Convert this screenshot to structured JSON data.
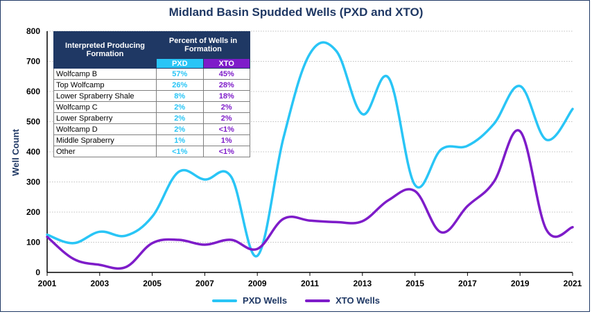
{
  "chart_data": {
    "type": "line",
    "title": "Midland Basin Spudded Wells (PXD and XTO)",
    "ylabel": "Well Count",
    "xlabel": "",
    "ylim": [
      0,
      800
    ],
    "yticks": [
      0,
      100,
      200,
      300,
      400,
      500,
      600,
      700,
      800
    ],
    "xlim": [
      2001,
      2021
    ],
    "xticks": [
      2001,
      2003,
      2005,
      2007,
      2009,
      2011,
      2013,
      2015,
      2017,
      2019,
      2021
    ],
    "grid": true,
    "legend_position": "bottom",
    "x": [
      2001,
      2002,
      2003,
      2004,
      2005,
      2006,
      2007,
      2008,
      2009,
      2010,
      2011,
      2012,
      2013,
      2014,
      2015,
      2016,
      2017,
      2018,
      2019,
      2020,
      2021
    ],
    "series": [
      {
        "name": "PXD Wells",
        "color": "#29c5f6",
        "values": [
          125,
          97,
          135,
          122,
          185,
          333,
          308,
          318,
          55,
          448,
          725,
          735,
          525,
          645,
          290,
          408,
          420,
          492,
          618,
          440,
          542
        ]
      },
      {
        "name": "XTO Wells",
        "color": "#7e1cc9",
        "values": [
          118,
          45,
          25,
          18,
          97,
          108,
          92,
          108,
          78,
          178,
          172,
          167,
          170,
          240,
          270,
          133,
          220,
          300,
          468,
          142,
          150
        ]
      }
    ]
  },
  "table": {
    "header_formation": "Interpreted Producing Formation",
    "header_percent": "Percent of Wells in Formation",
    "col_pxd": "PXD",
    "col_xto": "XTO",
    "col_pxd_color": "#29c5f6",
    "col_xto_color": "#7e1cc9",
    "rows": [
      {
        "formation": "Wolfcamp B",
        "pxd": "57%",
        "xto": "45%"
      },
      {
        "formation": "Top Wolfcamp",
        "pxd": "26%",
        "xto": "28%"
      },
      {
        "formation": "Lower Spraberry Shale",
        "pxd": "8%",
        "xto": "18%"
      },
      {
        "formation": "Wolfcamp C",
        "pxd": "2%",
        "xto": "2%"
      },
      {
        "formation": "Lower Spraberry",
        "pxd": "2%",
        "xto": "2%"
      },
      {
        "formation": "Wolfcamp D",
        "pxd": "2%",
        "xto": "<1%"
      },
      {
        "formation": "Middle Spraberry",
        "pxd": "1%",
        "xto": "1%"
      },
      {
        "formation": "Other",
        "pxd": "<1%",
        "xto": "<1%"
      }
    ]
  }
}
